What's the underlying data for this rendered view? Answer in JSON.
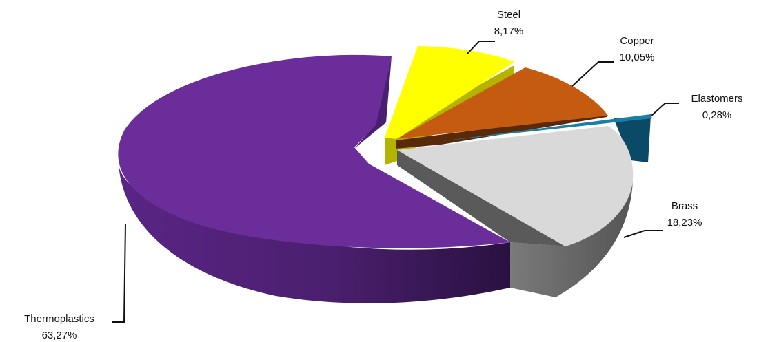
{
  "chart_data": {
    "type": "pie",
    "style": "3d-exploded",
    "title": "",
    "slices": [
      {
        "label": "Steel",
        "value_text": "8,17%",
        "value": 8.17,
        "color": "#ffff00",
        "side_color": "#b3b300"
      },
      {
        "label": "Copper",
        "value_text": "10,05%",
        "value": 10.05,
        "color": "#c55a11",
        "side_color": "#7a3608"
      },
      {
        "label": "Elastomers",
        "value_text": "0,28%",
        "value": 0.28,
        "color": "#0f5a78",
        "side_color": "#063a50"
      },
      {
        "label": "Brass",
        "value_text": "18,23%",
        "value": 18.23,
        "color": "#d9d9d9",
        "side_color": "#6b6b6b"
      },
      {
        "label": "Thermoplastics",
        "value_text": "63,27%",
        "value": 63.27,
        "color": "#6a2d9a",
        "side_color": "#3d1a5a"
      }
    ]
  }
}
